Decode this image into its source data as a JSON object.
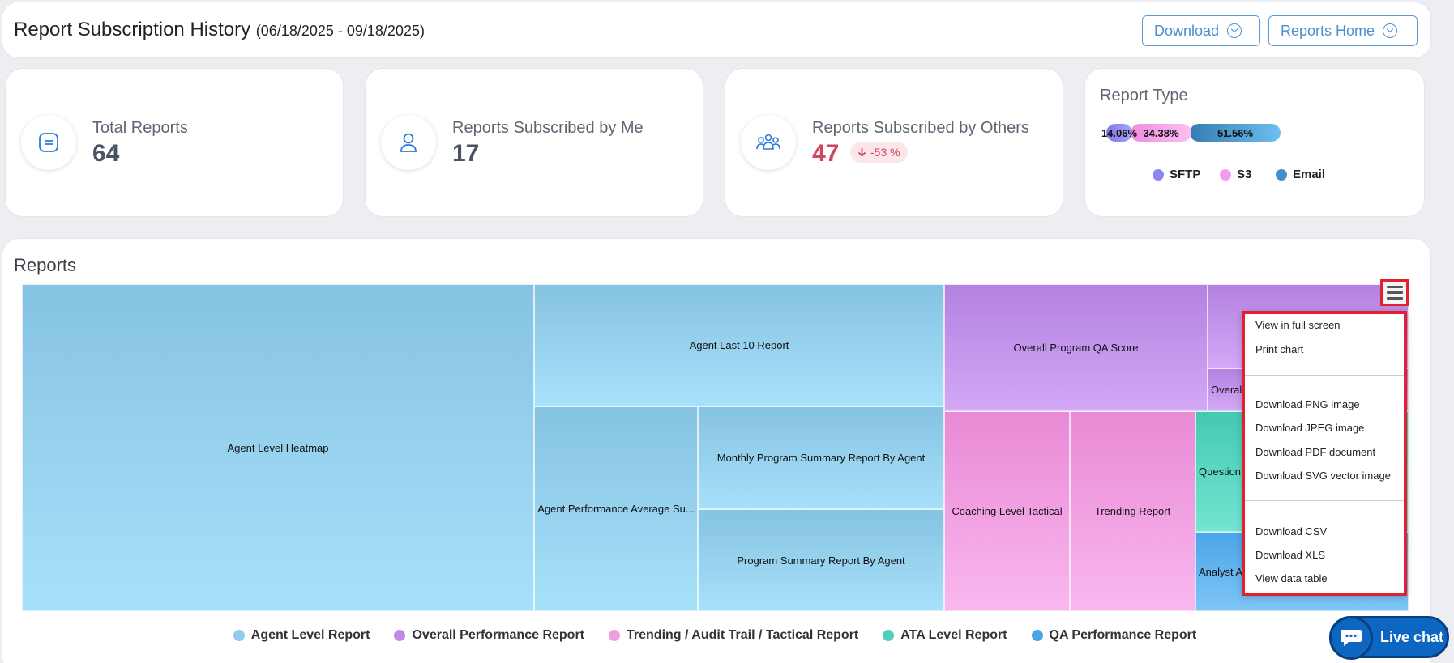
{
  "header": {
    "title": "Report Subscription History",
    "date_range": "(06/18/2025 - 09/18/2025)",
    "download_label": "Download",
    "reports_home_label": "Reports Home"
  },
  "cards": [
    {
      "label": "Total Reports",
      "value": "64",
      "icon": "list-icon"
    },
    {
      "label": "Reports Subscribed by Me",
      "value": "17",
      "icon": "user-icon"
    },
    {
      "label": "Reports Subscribed by Others",
      "value": "47",
      "icon": "users-group-icon",
      "change": "-53 %",
      "change_direction": "down"
    }
  ],
  "report_type": {
    "title": "Report Type",
    "chart_data": {
      "type": "bar",
      "categories": [
        "SFTP",
        "S3",
        "Email"
      ],
      "values": [
        14.06,
        34.38,
        51.56
      ],
      "data_labels": [
        "14.06%",
        "34.38%",
        "51.56%"
      ],
      "colors": [
        "#8b85f0",
        "#f49ce9",
        "#3f92c9"
      ],
      "legend_position": "bottom"
    }
  },
  "reports": {
    "title": "Reports",
    "chart_data": {
      "type": "treemap",
      "series": [
        {
          "name": "Agent Level Report",
          "color": "#8fcdea",
          "items": [
            "Agent Level Heatmap",
            "Agent Last 10 Report",
            "Agent Performance Average Su...",
            "Monthly Program Summary Report By Agent",
            "Program Summary Report By Agent"
          ]
        },
        {
          "name": "Overall Performance Report",
          "color": "#c08be8",
          "items": [
            "Overall Program QA Score",
            "Overal"
          ]
        },
        {
          "name": "Trending / Audit Trail / Tactical Report",
          "color": "#f19de3",
          "items": [
            "Coaching Level Tactical",
            "Trending Report"
          ]
        },
        {
          "name": "ATA Level Report",
          "color": "#4fd0bc",
          "items": [
            "Question"
          ]
        },
        {
          "name": "QA Performance Report",
          "color": "#4aa5e8",
          "items": [
            "Analyst A"
          ]
        }
      ],
      "legend_position": "bottom"
    }
  },
  "menu": {
    "items": [
      "View in full screen",
      "Print chart",
      "Download PNG image",
      "Download JPEG image",
      "Download PDF document",
      "Download SVG vector image",
      "Download CSV",
      "Download XLS",
      "View data table"
    ]
  },
  "livechat": {
    "label": "Live chat"
  }
}
